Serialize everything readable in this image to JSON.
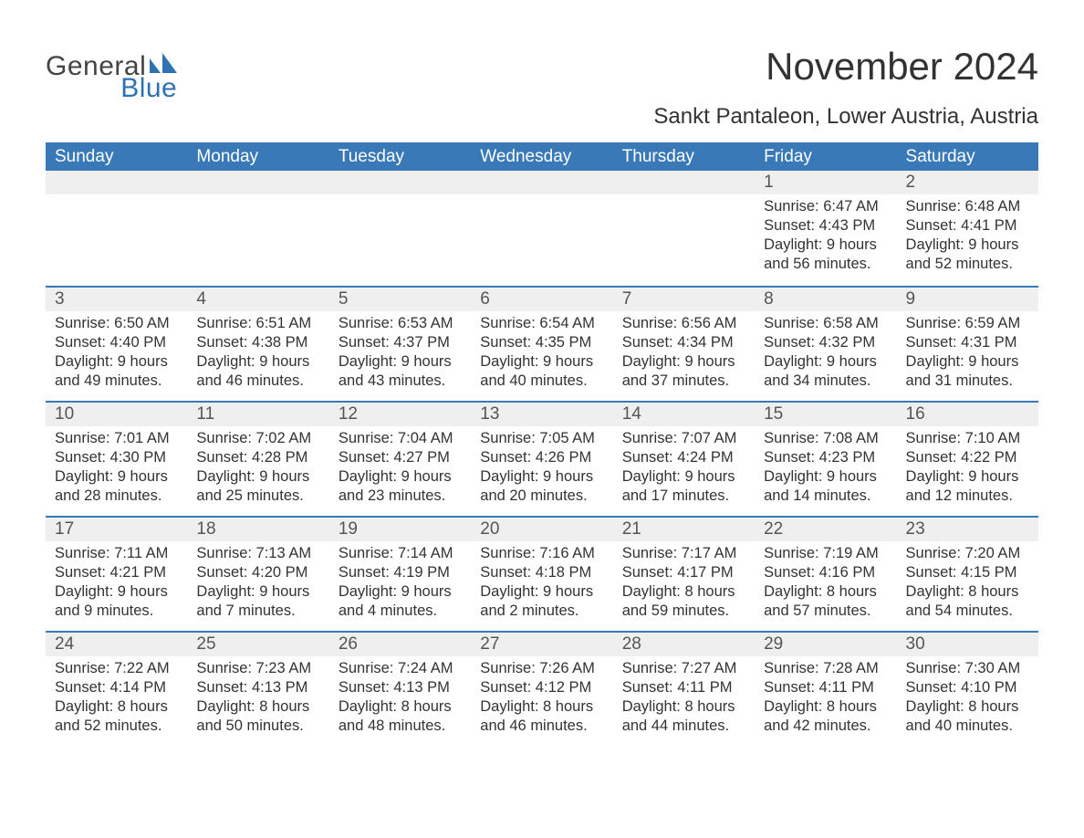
{
  "brand": {
    "part1": "General",
    "part2": "Blue",
    "sail_color": "#2f72b4"
  },
  "title": "November 2024",
  "location": "Sankt Pantaleon, Lower Austria, Austria",
  "colors": {
    "header_bg": "#3a79b7",
    "header_text": "#ffffff",
    "daynum_bg": "#efefef",
    "text": "#333333",
    "week_border": "#3a79b7"
  },
  "days_of_week": [
    "Sunday",
    "Monday",
    "Tuesday",
    "Wednesday",
    "Thursday",
    "Friday",
    "Saturday"
  ],
  "labels": {
    "sunrise": "Sunrise:",
    "sunset": "Sunset:",
    "daylight": "Daylight:"
  },
  "weeks": [
    [
      null,
      null,
      null,
      null,
      null,
      {
        "n": "1",
        "sunrise": "6:47 AM",
        "sunset": "4:43 PM",
        "daylight": "9 hours and 56 minutes."
      },
      {
        "n": "2",
        "sunrise": "6:48 AM",
        "sunset": "4:41 PM",
        "daylight": "9 hours and 52 minutes."
      }
    ],
    [
      {
        "n": "3",
        "sunrise": "6:50 AM",
        "sunset": "4:40 PM",
        "daylight": "9 hours and 49 minutes."
      },
      {
        "n": "4",
        "sunrise": "6:51 AM",
        "sunset": "4:38 PM",
        "daylight": "9 hours and 46 minutes."
      },
      {
        "n": "5",
        "sunrise": "6:53 AM",
        "sunset": "4:37 PM",
        "daylight": "9 hours and 43 minutes."
      },
      {
        "n": "6",
        "sunrise": "6:54 AM",
        "sunset": "4:35 PM",
        "daylight": "9 hours and 40 minutes."
      },
      {
        "n": "7",
        "sunrise": "6:56 AM",
        "sunset": "4:34 PM",
        "daylight": "9 hours and 37 minutes."
      },
      {
        "n": "8",
        "sunrise": "6:58 AM",
        "sunset": "4:32 PM",
        "daylight": "9 hours and 34 minutes."
      },
      {
        "n": "9",
        "sunrise": "6:59 AM",
        "sunset": "4:31 PM",
        "daylight": "9 hours and 31 minutes."
      }
    ],
    [
      {
        "n": "10",
        "sunrise": "7:01 AM",
        "sunset": "4:30 PM",
        "daylight": "9 hours and 28 minutes."
      },
      {
        "n": "11",
        "sunrise": "7:02 AM",
        "sunset": "4:28 PM",
        "daylight": "9 hours and 25 minutes."
      },
      {
        "n": "12",
        "sunrise": "7:04 AM",
        "sunset": "4:27 PM",
        "daylight": "9 hours and 23 minutes."
      },
      {
        "n": "13",
        "sunrise": "7:05 AM",
        "sunset": "4:26 PM",
        "daylight": "9 hours and 20 minutes."
      },
      {
        "n": "14",
        "sunrise": "7:07 AM",
        "sunset": "4:24 PM",
        "daylight": "9 hours and 17 minutes."
      },
      {
        "n": "15",
        "sunrise": "7:08 AM",
        "sunset": "4:23 PM",
        "daylight": "9 hours and 14 minutes."
      },
      {
        "n": "16",
        "sunrise": "7:10 AM",
        "sunset": "4:22 PM",
        "daylight": "9 hours and 12 minutes."
      }
    ],
    [
      {
        "n": "17",
        "sunrise": "7:11 AM",
        "sunset": "4:21 PM",
        "daylight": "9 hours and 9 minutes."
      },
      {
        "n": "18",
        "sunrise": "7:13 AM",
        "sunset": "4:20 PM",
        "daylight": "9 hours and 7 minutes."
      },
      {
        "n": "19",
        "sunrise": "7:14 AM",
        "sunset": "4:19 PM",
        "daylight": "9 hours and 4 minutes."
      },
      {
        "n": "20",
        "sunrise": "7:16 AM",
        "sunset": "4:18 PM",
        "daylight": "9 hours and 2 minutes."
      },
      {
        "n": "21",
        "sunrise": "7:17 AM",
        "sunset": "4:17 PM",
        "daylight": "8 hours and 59 minutes."
      },
      {
        "n": "22",
        "sunrise": "7:19 AM",
        "sunset": "4:16 PM",
        "daylight": "8 hours and 57 minutes."
      },
      {
        "n": "23",
        "sunrise": "7:20 AM",
        "sunset": "4:15 PM",
        "daylight": "8 hours and 54 minutes."
      }
    ],
    [
      {
        "n": "24",
        "sunrise": "7:22 AM",
        "sunset": "4:14 PM",
        "daylight": "8 hours and 52 minutes."
      },
      {
        "n": "25",
        "sunrise": "7:23 AM",
        "sunset": "4:13 PM",
        "daylight": "8 hours and 50 minutes."
      },
      {
        "n": "26",
        "sunrise": "7:24 AM",
        "sunset": "4:13 PM",
        "daylight": "8 hours and 48 minutes."
      },
      {
        "n": "27",
        "sunrise": "7:26 AM",
        "sunset": "4:12 PM",
        "daylight": "8 hours and 46 minutes."
      },
      {
        "n": "28",
        "sunrise": "7:27 AM",
        "sunset": "4:11 PM",
        "daylight": "8 hours and 44 minutes."
      },
      {
        "n": "29",
        "sunrise": "7:28 AM",
        "sunset": "4:11 PM",
        "daylight": "8 hours and 42 minutes."
      },
      {
        "n": "30",
        "sunrise": "7:30 AM",
        "sunset": "4:10 PM",
        "daylight": "8 hours and 40 minutes."
      }
    ]
  ]
}
